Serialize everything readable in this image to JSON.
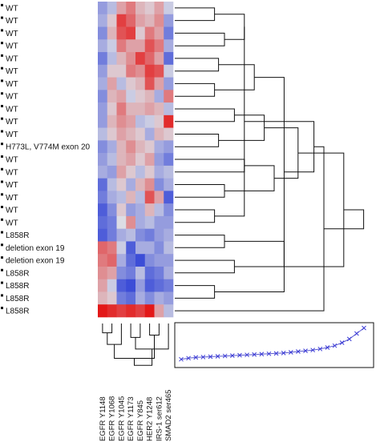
{
  "chart_data": {
    "type": "heatmap",
    "rows": [
      "WT",
      "WT",
      "WT",
      "WT",
      "WT",
      "WT",
      "WT",
      "WT",
      "WT",
      "WT",
      "WT",
      "H773L, V774M exon 20",
      "WT",
      "WT",
      "WT",
      "WT",
      "WT",
      "WT",
      "L858R",
      "deletion exon 19",
      "deletion exon 19",
      "L858R",
      "L858R",
      "L858R",
      "L858R"
    ],
    "columns": [
      "EGFR Y1148",
      "EGFR Y1068",
      "EGFR Y1045",
      "EGFR Y1173",
      "EGFR Y845",
      "HER2 Y1248",
      "IRS-1 ser612",
      "SMAD2 ser465"
    ],
    "values": [
      [
        -0.4,
        -0.2,
        0.3,
        0.5,
        0.2,
        0.1,
        0.3,
        -0.1
      ],
      [
        -0.3,
        0.1,
        0.8,
        0.6,
        0.3,
        0.2,
        0.4,
        -0.4
      ],
      [
        -0.5,
        0.2,
        0.7,
        0.8,
        0.1,
        0.5,
        0.3,
        -0.6
      ],
      [
        -0.3,
        -0.1,
        0.5,
        0.3,
        0.3,
        0.7,
        0.5,
        -0.3
      ],
      [
        -0.6,
        -0.2,
        0.2,
        0.4,
        0.8,
        0.6,
        0.3,
        -0.7
      ],
      [
        -0.4,
        0.1,
        0.1,
        0.5,
        0.4,
        0.8,
        0.7,
        -0.1
      ],
      [
        -0.3,
        0.3,
        -0.2,
        0.1,
        0.2,
        0.7,
        0.3,
        -0.4
      ],
      [
        -0.5,
        0.2,
        0.3,
        -0.1,
        0.1,
        0.2,
        -0.3,
        0.5
      ],
      [
        -0.4,
        0.1,
        0.5,
        0.2,
        0.2,
        0.3,
        0.2,
        -0.2
      ],
      [
        -0.4,
        0.2,
        0.4,
        0.3,
        -0.2,
        -0.1,
        0.1,
        0.9
      ],
      [
        -0.2,
        0.1,
        0.3,
        0.2,
        0.1,
        -0.3,
        0.2,
        0.1
      ],
      [
        -0.5,
        -0.3,
        0.2,
        0.4,
        0.2,
        0.1,
        -0.3,
        -0.4
      ],
      [
        -0.4,
        -0.2,
        0.2,
        0.3,
        0.1,
        0.3,
        -0.4,
        -0.6
      ],
      [
        -0.3,
        -0.4,
        0.3,
        0.1,
        -0.2,
        0.1,
        -0.3,
        -0.2
      ],
      [
        -0.7,
        -0.2,
        0.1,
        -0.3,
        0.2,
        0.4,
        -0.5,
        -0.3
      ],
      [
        -0.6,
        -0.3,
        -0.2,
        0.2,
        -0.2,
        0.7,
        0.3,
        -0.8
      ],
      [
        -0.8,
        -0.5,
        0.1,
        -0.4,
        -0.3,
        0.2,
        -0.2,
        -0.5
      ],
      [
        -0.7,
        -0.6,
        0.0,
        0.4,
        -0.3,
        -0.2,
        -0.4,
        -0.4
      ],
      [
        -0.8,
        -0.6,
        -0.3,
        -0.2,
        -0.5,
        -0.6,
        -0.4,
        -0.3
      ],
      [
        0.6,
        0.5,
        -0.1,
        -0.8,
        -0.3,
        -0.3,
        -0.5,
        -0.2
      ],
      [
        0.5,
        0.6,
        -0.3,
        -0.7,
        -0.9,
        -0.5,
        -0.4,
        -0.4
      ],
      [
        0.4,
        0.3,
        -0.5,
        -0.6,
        -0.2,
        -0.7,
        -0.6,
        -0.3
      ],
      [
        0.3,
        -0.1,
        -0.8,
        -0.9,
        -0.4,
        -0.8,
        -0.7,
        -0.6
      ],
      [
        0.2,
        0.1,
        -0.6,
        -0.7,
        -0.3,
        -0.5,
        -0.3,
        -0.4
      ],
      [
        1.0,
        0.9,
        0.8,
        0.9,
        0.8,
        1.0,
        0.3,
        -0.2
      ]
    ],
    "color_scale": {
      "low": "#2a3dd6",
      "mid": "#dcdce4",
      "high": "#e31818"
    },
    "row_dendrogram": [
      [
        18,
        19,
        0.25
      ],
      [
        20,
        21,
        0.3
      ],
      [
        22,
        23,
        0.2
      ],
      [
        0,
        1,
        0.2
      ],
      [
        2,
        3,
        0.25
      ],
      [
        4,
        5,
        0.22
      ],
      [
        6,
        7,
        0.2
      ],
      [
        8,
        9,
        0.3
      ],
      [
        10,
        11,
        0.22
      ],
      [
        12,
        13,
        0.35
      ],
      [
        14,
        15,
        0.25
      ],
      [
        16,
        17,
        0.2
      ],
      [
        28,
        29,
        0.35
      ],
      [
        30,
        31,
        0.4
      ],
      [
        32,
        33,
        0.45
      ],
      [
        34,
        35,
        0.5
      ],
      [
        36,
        37,
        0.35
      ],
      [
        38,
        26,
        0.55
      ],
      [
        39,
        40,
        0.62
      ],
      [
        41,
        42,
        0.7
      ],
      [
        25,
        27,
        0.55
      ],
      [
        44,
        24,
        0.75
      ],
      [
        45,
        43,
        0.85
      ],
      [
        46,
        47,
        0.95
      ]
    ],
    "column_dendrogram": [
      [
        0,
        1,
        0.2
      ],
      [
        3,
        4,
        0.3
      ],
      [
        5,
        6,
        0.25
      ],
      [
        8,
        2,
        0.45
      ],
      [
        7,
        9,
        0.55
      ],
      [
        11,
        10,
        0.75
      ],
      [
        12,
        13,
        0.9
      ]
    ],
    "key_curve": [
      0.05,
      0.08,
      0.1,
      0.11,
      0.12,
      0.13,
      0.14,
      0.15,
      0.16,
      0.17,
      0.18,
      0.19,
      0.2,
      0.21,
      0.22,
      0.24,
      0.26,
      0.28,
      0.3,
      0.33,
      0.37,
      0.42,
      0.5,
      0.6,
      0.75,
      0.9
    ]
  }
}
